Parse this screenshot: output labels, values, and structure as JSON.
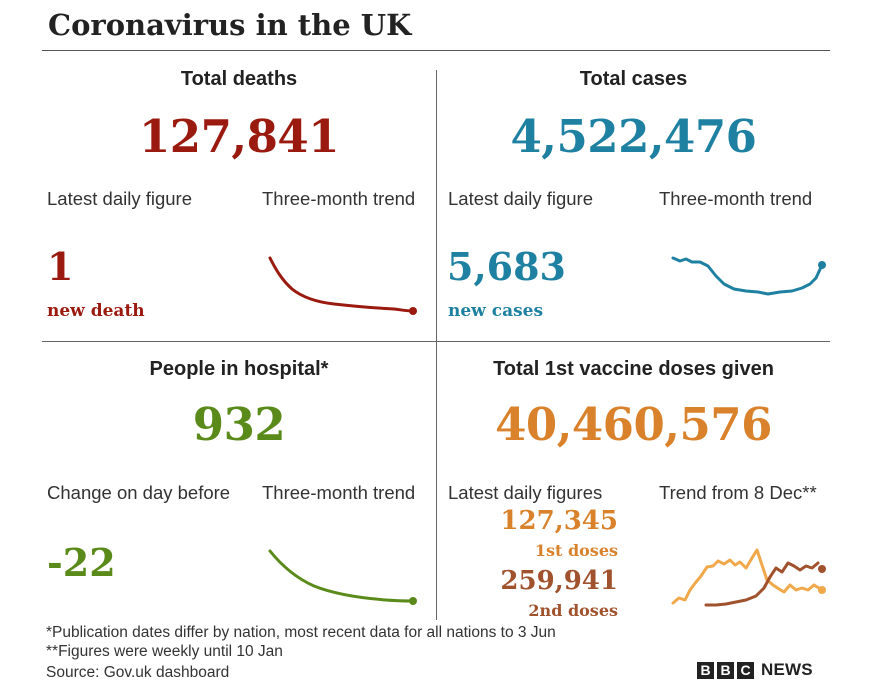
{
  "title": "Coronavirus in the UK",
  "colors": {
    "deaths": "#9a1a0f",
    "cases": "#1f81a2",
    "hospital": "#5a8a1a",
    "vaccine1": "#d9822b",
    "vaccine2": "#a0522d",
    "vaccine_light": "#f0a84a"
  },
  "deaths": {
    "heading": "Total deaths",
    "total": "127,841",
    "latest_label": "Latest daily figure",
    "trend_label": "Three-month trend",
    "daily_value": "1",
    "daily_unit": "new death"
  },
  "cases": {
    "heading": "Total cases",
    "total": "4,522,476",
    "latest_label": "Latest daily figure",
    "trend_label": "Three-month trend",
    "daily_value": "5,683",
    "daily_unit": "new cases"
  },
  "hospital": {
    "heading": "People in hospital*",
    "total": "932",
    "change_label": "Change on day before",
    "trend_label": "Three-month trend",
    "change_value": "-22"
  },
  "vaccine": {
    "heading": "Total 1st vaccine doses given",
    "total": "40,460,576",
    "latest_label": "Latest daily figures",
    "trend_label": "Trend from 8 Dec**",
    "first_value": "127,345",
    "first_label": "1st doses",
    "second_value": "259,941",
    "second_label": "2nd doses"
  },
  "footnotes": {
    "note1": "*Publication dates differ by nation, most recent data for all nations to 3 Jun",
    "note2": "**Figures were weekly until 10 Jan",
    "source": "Source: Gov.uk dashboard"
  },
  "logo": {
    "letters": [
      "B",
      "B",
      "C"
    ],
    "word": "NEWS"
  }
}
